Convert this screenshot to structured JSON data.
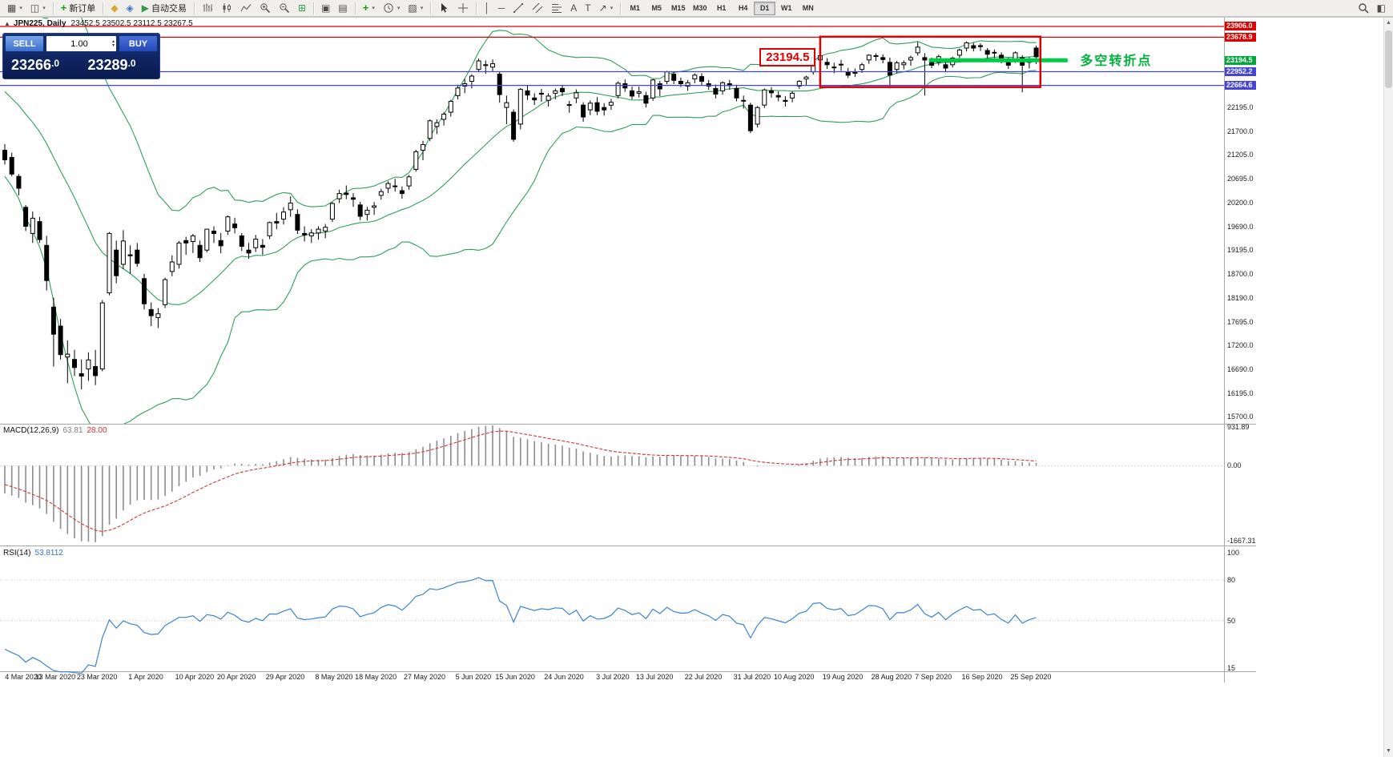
{
  "toolbar": {
    "new_order": "新订单",
    "autotrading": "自动交易",
    "timeframes": [
      "M1",
      "M5",
      "M15",
      "M30",
      "H1",
      "H4",
      "D1",
      "W1",
      "MN"
    ],
    "active_timeframe": "D1",
    "icons": {
      "collapse": "▲",
      "new_chart": "▦",
      "profiles": "◫",
      "mql5": "◆",
      "metaeditor": "◈",
      "autotrading": "▶",
      "tile_windows": "⊞",
      "cascade": "▣",
      "arrange": "▤",
      "indicators_plus": "+",
      "templates": "▧",
      "vline": "│",
      "hline": "─",
      "text": "A",
      "label": "T",
      "arrow": "↗",
      "dropdown": "▾",
      "layout": "◧",
      "spin_up": "▴",
      "spin_down": "▾",
      "scroll_up": "▲",
      "scroll_down": "▼"
    }
  },
  "chart_header": {
    "symbol_period": "JPN225, Daily",
    "ohlc": "23452.5 23502.5 23112.5 23267.5"
  },
  "trade_panel": {
    "sell": "SELL",
    "buy": "BUY",
    "volume": "1.00",
    "sell_price": "23266.0",
    "buy_price": "23289.0"
  },
  "macd_panel": {
    "name": "MACD(12,26,9)",
    "main_value": "63.81",
    "signal_value": "28.00",
    "axis_max": "931.89",
    "axis_zero": "0.00",
    "axis_min": "-1667.31"
  },
  "rsi_panel": {
    "name": "RSI(14)",
    "value": "53.8112",
    "levels": [
      80,
      50
    ],
    "axis_labels": [
      {
        "v": 100,
        "label": "100"
      },
      {
        "v": 80,
        "label": "80"
      },
      {
        "v": 50,
        "label": "50"
      },
      {
        "v": 15,
        "label": "15"
      }
    ]
  },
  "annotations": {
    "callout": "23194.5",
    "note": "多空转折点"
  },
  "chart_data": {
    "type": "candlestick",
    "symbol": "JPN225",
    "timeframe": "Daily",
    "ylim": [
      15580,
      24040
    ],
    "price_axis_ticks": [
      "22195.0",
      "21700.0",
      "21205.0",
      "20695.0",
      "20200.0",
      "19690.0",
      "19195.0",
      "18700.0",
      "18190.0",
      "17695.0",
      "17200.0",
      "16690.0",
      "16195.0",
      "15700.0"
    ],
    "date_ticks": [
      {
        "label": "4 Mar 2020",
        "bar": 0
      },
      {
        "label": "13 Mar 2020",
        "bar": 7
      },
      {
        "label": "23 Mar 2020",
        "bar": 13
      },
      {
        "label": "1 Apr 2020",
        "bar": 20
      },
      {
        "label": "10 Apr 2020",
        "bar": 27
      },
      {
        "label": "20 Apr 2020",
        "bar": 33
      },
      {
        "label": "29 Apr 2020",
        "bar": 40
      },
      {
        "label": "8 May 2020",
        "bar": 47
      },
      {
        "label": "18 May 2020",
        "bar": 53
      },
      {
        "label": "27 May 2020",
        "bar": 60
      },
      {
        "label": "5 Jun 2020",
        "bar": 67
      },
      {
        "label": "15 Jun 2020",
        "bar": 73
      },
      {
        "label": "24 Jun 2020",
        "bar": 80
      },
      {
        "label": "3 Jul 2020",
        "bar": 87
      },
      {
        "label": "13 Jul 2020",
        "bar": 93
      },
      {
        "label": "22 Jul 2020",
        "bar": 100
      },
      {
        "label": "31 Jul 2020",
        "bar": 107
      },
      {
        "label": "10 Aug 2020",
        "bar": 113
      },
      {
        "label": "19 Aug 2020",
        "bar": 120
      },
      {
        "label": "28 Aug 2020",
        "bar": 127
      },
      {
        "label": "7 Sep 2020",
        "bar": 133
      },
      {
        "label": "16 Sep 2020",
        "bar": 140
      },
      {
        "label": "25 Sep 2020",
        "bar": 147
      }
    ],
    "prehistory_closes": [
      23320,
      23390,
      23290,
      23690,
      23640,
      23900,
      23870,
      23700,
      23390,
      23400,
      23350,
      23390,
      23480,
      23240,
      22800,
      22420,
      22530,
      22880,
      23030,
      22940,
      22290,
      21950,
      21140,
      21340,
      21080,
      21240
    ],
    "candles": [
      [
        21300,
        21430,
        21000,
        21100
      ],
      [
        21150,
        21250,
        20750,
        20800
      ],
      [
        20750,
        20800,
        20350,
        20500
      ],
      [
        20100,
        20150,
        19600,
        19700
      ],
      [
        19550,
        20010,
        19350,
        19870
      ],
      [
        19800,
        19900,
        19350,
        19420
      ],
      [
        19300,
        19500,
        18350,
        18560
      ],
      [
        18000,
        18200,
        16750,
        17430
      ],
      [
        17600,
        17750,
        16900,
        17000
      ],
      [
        16950,
        17300,
        16400,
        17010
      ],
      [
        16900,
        17100,
        16550,
        16730
      ],
      [
        16600,
        16900,
        16270,
        16550
      ],
      [
        16700,
        17050,
        16450,
        16890
      ],
      [
        16750,
        17100,
        16360,
        16560
      ],
      [
        16700,
        18150,
        16650,
        18090
      ],
      [
        18300,
        19580,
        18250,
        19550
      ],
      [
        19200,
        19400,
        18500,
        18660
      ],
      [
        18900,
        19620,
        18800,
        19390
      ],
      [
        19100,
        19300,
        18700,
        19080
      ],
      [
        19200,
        19350,
        18850,
        18920
      ],
      [
        18600,
        18700,
        17950,
        18070
      ],
      [
        17950,
        18100,
        17600,
        17820
      ],
      [
        17780,
        17980,
        17560,
        17860
      ],
      [
        18050,
        18620,
        17980,
        18580
      ],
      [
        18750,
        19090,
        18650,
        18950
      ],
      [
        18900,
        19390,
        18810,
        19350
      ],
      [
        19400,
        19480,
        19100,
        19350
      ],
      [
        19380,
        19540,
        19140,
        19500
      ],
      [
        19300,
        19400,
        18950,
        19040
      ],
      [
        19200,
        19650,
        19150,
        19640
      ],
      [
        19600,
        19700,
        19350,
        19550
      ],
      [
        19400,
        19560,
        19130,
        19290
      ],
      [
        19600,
        19930,
        19520,
        19900
      ],
      [
        19750,
        19880,
        19550,
        19670
      ],
      [
        19500,
        19560,
        19180,
        19280
      ],
      [
        19200,
        19350,
        19020,
        19140
      ],
      [
        19250,
        19520,
        19160,
        19430
      ],
      [
        19300,
        19430,
        19100,
        19260
      ],
      [
        19500,
        19800,
        19430,
        19780
      ],
      [
        19800,
        19980,
        19640,
        19770
      ],
      [
        19850,
        20100,
        19740,
        20000
      ],
      [
        20050,
        20330,
        19900,
        20190
      ],
      [
        19950,
        20060,
        19540,
        19620
      ],
      [
        19550,
        19700,
        19380,
        19520
      ],
      [
        19500,
        19640,
        19350,
        19560
      ],
      [
        19560,
        19700,
        19420,
        19640
      ],
      [
        19600,
        19750,
        19450,
        19680
      ],
      [
        19850,
        20210,
        19790,
        20180
      ],
      [
        20280,
        20470,
        20190,
        20390
      ],
      [
        20400,
        20560,
        20270,
        20370
      ],
      [
        20300,
        20400,
        20110,
        20270
      ],
      [
        20150,
        20220,
        19830,
        19910
      ],
      [
        19950,
        20110,
        19820,
        20040
      ],
      [
        20100,
        20210,
        19940,
        20130
      ],
      [
        20350,
        20490,
        20260,
        20430
      ],
      [
        20500,
        20650,
        20400,
        20600
      ],
      [
        20550,
        20700,
        20430,
        20550
      ],
      [
        20450,
        20540,
        20280,
        20390
      ],
      [
        20550,
        20780,
        20470,
        20740
      ],
      [
        20900,
        21310,
        20850,
        21270
      ],
      [
        21300,
        21500,
        21090,
        21420
      ],
      [
        21550,
        21950,
        21490,
        21920
      ],
      [
        21800,
        21950,
        21640,
        21880
      ],
      [
        21950,
        22100,
        21820,
        22060
      ],
      [
        22100,
        22360,
        22010,
        22330
      ],
      [
        22450,
        22680,
        22370,
        22610
      ],
      [
        22650,
        22800,
        22500,
        22700
      ],
      [
        22750,
        22900,
        22600,
        22860
      ],
      [
        23000,
        23230,
        22940,
        23180
      ],
      [
        23100,
        23190,
        22910,
        23090
      ],
      [
        23050,
        23210,
        22960,
        23120
      ],
      [
        22900,
        22960,
        22300,
        22470
      ],
      [
        22200,
        22450,
        21850,
        22300
      ],
      [
        22100,
        22160,
        21480,
        21530
      ],
      [
        21850,
        22610,
        21740,
        22580
      ],
      [
        22550,
        22660,
        22360,
        22460
      ],
      [
        22400,
        22500,
        22250,
        22360
      ],
      [
        22500,
        22590,
        22320,
        22480
      ],
      [
        22350,
        22500,
        22220,
        22440
      ],
      [
        22500,
        22600,
        22370,
        22550
      ],
      [
        22600,
        22680,
        22440,
        22530
      ],
      [
        22250,
        22340,
        22090,
        22260
      ],
      [
        22400,
        22580,
        22290,
        22510
      ],
      [
        22250,
        22310,
        21900,
        22000
      ],
      [
        22150,
        22350,
        22040,
        22290
      ],
      [
        22300,
        22420,
        22040,
        22120
      ],
      [
        22200,
        22290,
        22030,
        22150
      ],
      [
        22250,
        22380,
        22150,
        22310
      ],
      [
        22450,
        22750,
        22390,
        22710
      ],
      [
        22700,
        22790,
        22530,
        22610
      ],
      [
        22550,
        22640,
        22370,
        22440
      ],
      [
        22500,
        22640,
        22410,
        22530
      ],
      [
        22450,
        22530,
        22200,
        22290
      ],
      [
        22400,
        22800,
        22340,
        22780
      ],
      [
        22700,
        22760,
        22440,
        22590
      ],
      [
        22750,
        22970,
        22690,
        22950
      ],
      [
        22900,
        22950,
        22690,
        22770
      ],
      [
        22750,
        22830,
        22630,
        22700
      ],
      [
        22650,
        22780,
        22550,
        22720
      ],
      [
        22800,
        22920,
        22710,
        22880
      ],
      [
        22850,
        22920,
        22670,
        22750
      ],
      [
        22700,
        22780,
        22570,
        22650
      ],
      [
        22600,
        22680,
        22390,
        22480
      ],
      [
        22550,
        22750,
        22470,
        22720
      ],
      [
        22700,
        22780,
        22570,
        22660
      ],
      [
        22600,
        22680,
        22330,
        22400
      ],
      [
        22350,
        22450,
        22180,
        22340
      ],
      [
        22250,
        22300,
        21660,
        21710
      ],
      [
        21850,
        22230,
        21780,
        22200
      ],
      [
        22250,
        22600,
        22190,
        22570
      ],
      [
        22550,
        22630,
        22410,
        22510
      ],
      [
        22450,
        22540,
        22330,
        22420
      ],
      [
        22350,
        22440,
        22220,
        22330
      ],
      [
        22400,
        22540,
        22310,
        22500
      ],
      [
        22650,
        22780,
        22590,
        22750
      ],
      [
        22800,
        22870,
        22670,
        22840
      ],
      [
        22950,
        23270,
        22890,
        23250
      ],
      [
        23200,
        23320,
        23120,
        23290
      ],
      [
        23150,
        23240,
        23010,
        23100
      ],
      [
        23050,
        23140,
        22920,
        23050
      ],
      [
        23100,
        23200,
        22970,
        23110
      ],
      [
        22950,
        23030,
        22820,
        22880
      ],
      [
        22950,
        23020,
        22840,
        22920
      ],
      [
        23000,
        23140,
        22930,
        23100
      ],
      [
        23200,
        23320,
        23120,
        23300
      ],
      [
        23280,
        23340,
        23180,
        23290
      ],
      [
        23250,
        23320,
        23130,
        23210
      ],
      [
        23150,
        23250,
        22600,
        22880
      ],
      [
        23000,
        23180,
        22920,
        23140
      ],
      [
        23100,
        23190,
        23000,
        23140
      ],
      [
        23200,
        23290,
        23080,
        23250
      ],
      [
        23350,
        23580,
        23290,
        23470
      ],
      [
        23250,
        23340,
        22450,
        23200
      ],
      [
        23150,
        23250,
        23030,
        23090
      ],
      [
        23150,
        23310,
        23090,
        23270
      ],
      [
        23100,
        23180,
        22940,
        23030
      ],
      [
        23100,
        23270,
        23040,
        23240
      ],
      [
        23300,
        23440,
        23240,
        23410
      ],
      [
        23450,
        23590,
        23380,
        23560
      ],
      [
        23500,
        23560,
        23380,
        23450
      ],
      [
        23500,
        23550,
        23390,
        23480
      ],
      [
        23400,
        23450,
        23190,
        23320
      ],
      [
        23350,
        23420,
        23240,
        23360
      ],
      [
        23300,
        23360,
        23130,
        23200
      ],
      [
        23150,
        23250,
        23010,
        23090
      ],
      [
        23200,
        23380,
        23140,
        23350
      ],
      [
        23250,
        23300,
        22520,
        23090
      ],
      [
        23150,
        23260,
        23020,
        23200
      ],
      [
        23452.5,
        23502.5,
        23112.5,
        23267.5
      ]
    ],
    "indicators": {
      "bollinger": {
        "period": 20,
        "deviation": 2,
        "color": "#2f9e58"
      },
      "macd": {
        "fast": 12,
        "slow": 26,
        "signal": 9
      },
      "rsi": {
        "period": 14
      }
    },
    "objects": {
      "hlines": [
        {
          "price": 23906.0,
          "color": "#e00000",
          "axis_label": "23906.0"
        },
        {
          "price": 23678.9,
          "color": "#e00000",
          "axis_label": "23678.9"
        },
        {
          "price": 22952.2,
          "color": "#4444dd",
          "axis_label": "22952.2"
        },
        {
          "price": 22664.6,
          "color": "#4444dd",
          "axis_label": "22664.6"
        }
      ],
      "trend_segment": {
        "price": 23194.5,
        "x1_bar": 132.6,
        "x2_bar": 152.5,
        "color": "#00cc44",
        "width": 5,
        "axis_label": "23194.5",
        "axis_color": "#00a83c"
      },
      "rectangle": {
        "x1_bar": 117,
        "x2_bar": 148.6,
        "price_top": 23690,
        "price_bottom": 22630,
        "color": "#e00000"
      },
      "callout": {
        "x_bar": 108.3,
        "price": 23450
      },
      "note": {
        "x_bar": 154.3,
        "price": 23417
      }
    }
  }
}
